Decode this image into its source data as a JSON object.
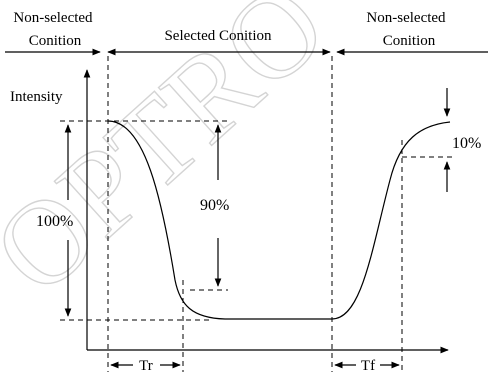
{
  "watermark": "OPTRO",
  "regions": {
    "left_line1": "Non-selected",
    "left_line2": "Conition",
    "middle": "Selected Conition",
    "right_line1": "Non-selected",
    "right_line2": "Conition"
  },
  "y_axis_label": "Intensity",
  "annotations": {
    "full_range": "100%",
    "ninety": "90%",
    "ten": "10%",
    "rise_time": "Tr",
    "fall_time": "Tf"
  }
}
